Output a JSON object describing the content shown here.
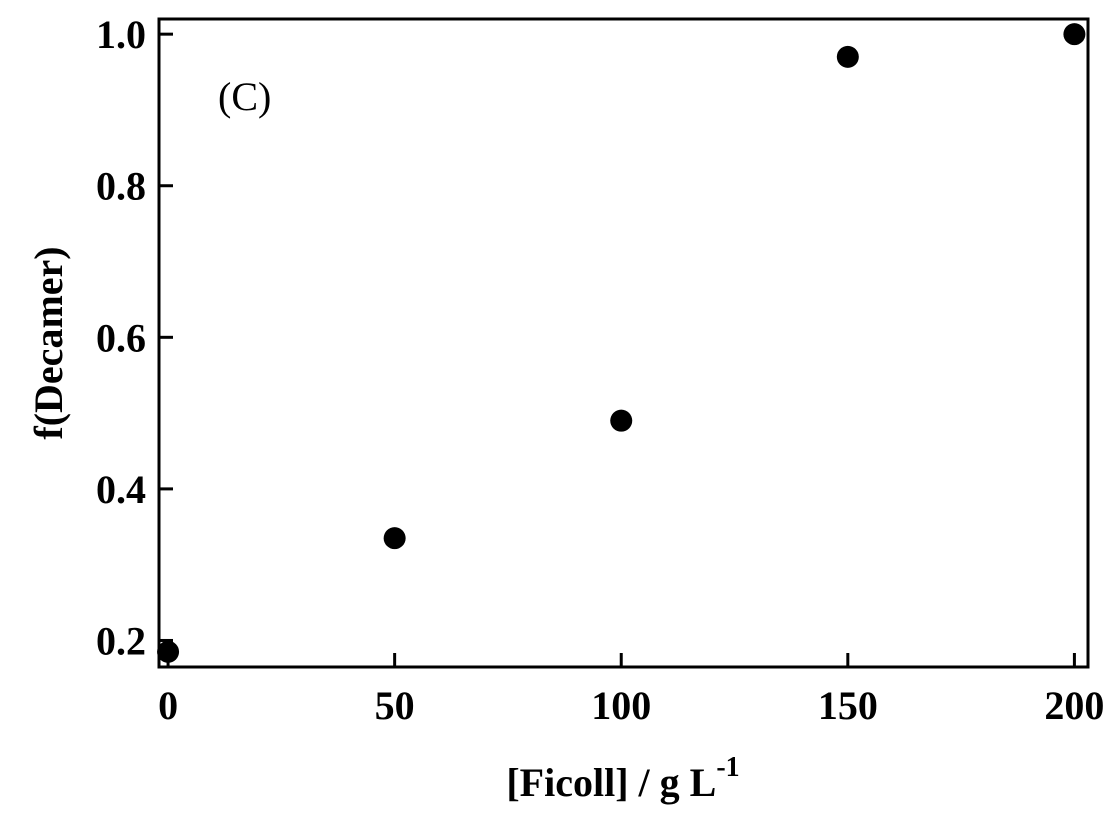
{
  "chart_data": {
    "type": "scatter",
    "panel_label": "(C)",
    "title": "",
    "xlabel": "[Ficoll] / g L",
    "xlabel_superscript": "-1",
    "ylabel": "f(Decamer)",
    "xlim": [
      -2,
      203
    ],
    "ylim": [
      0.165,
      1.02
    ],
    "xticks": [
      0,
      50,
      100,
      150,
      200
    ],
    "xtick_labels": [
      "0",
      "50",
      "100",
      "150",
      "200"
    ],
    "yticks": [
      0.2,
      0.4,
      0.6,
      0.8,
      1.0
    ],
    "ytick_labels": [
      "0.2",
      "0.4",
      "0.6",
      "0.8",
      "1.0"
    ],
    "grid": false,
    "marker_color": "#000000",
    "series": [
      {
        "x": [
          0,
          50,
          100,
          150,
          200
        ],
        "y": [
          0.185,
          0.335,
          0.49,
          0.97,
          1.0
        ]
      }
    ]
  }
}
